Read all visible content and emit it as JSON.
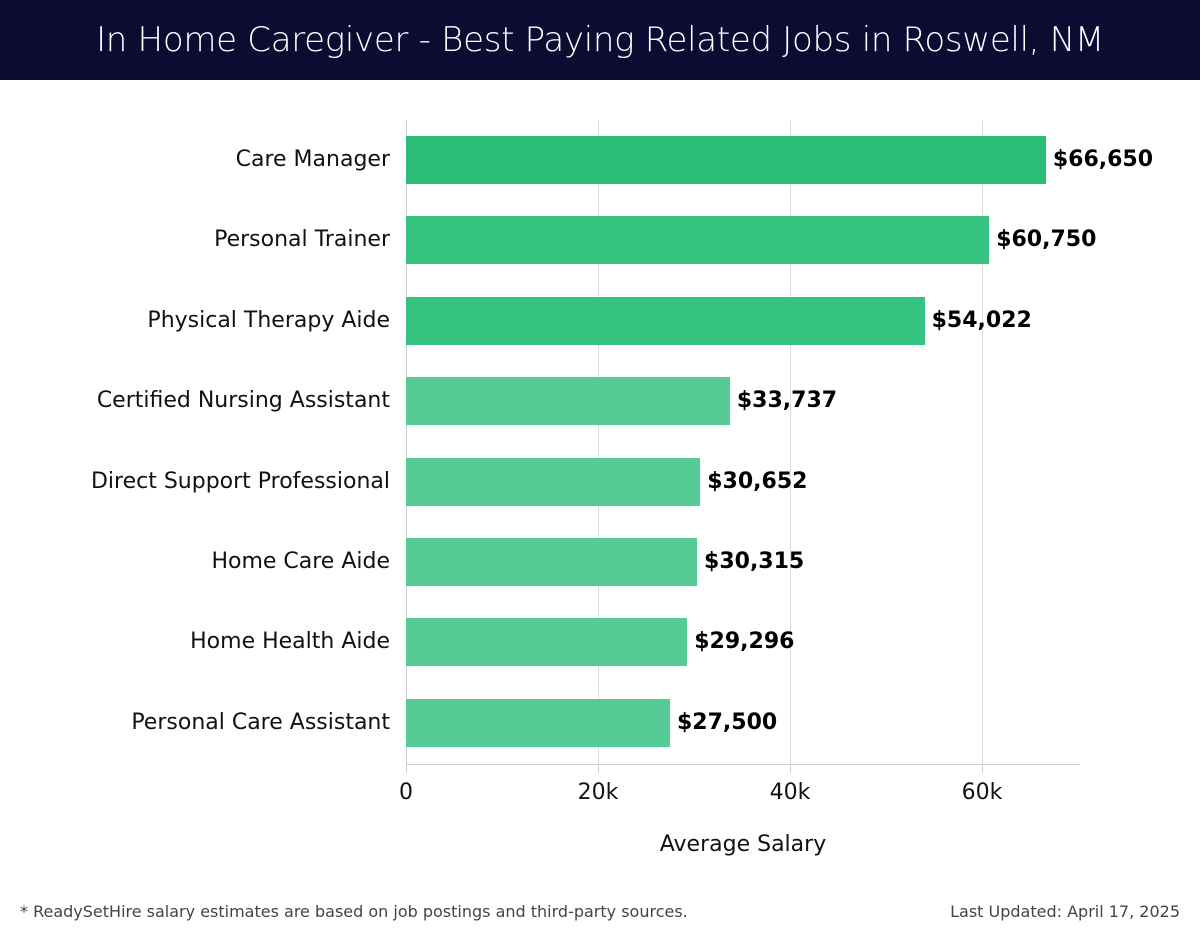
{
  "header": {
    "title": "In Home Caregiver - Best Paying Related Jobs in Roswell, NM"
  },
  "colors": {
    "header_bg": "#0c0c33",
    "bar_top": "#2bbd77",
    "bar_mid": "#36c27f",
    "bar_low": "#55cc95"
  },
  "chart_data": {
    "type": "bar",
    "orientation": "horizontal",
    "title": "In Home Caregiver - Best Paying Related Jobs in Roswell, NM",
    "xlabel": "Average Salary",
    "ylabel": "",
    "xlim": [
      0,
      70200
    ],
    "grid": true,
    "categories": [
      "Care Manager",
      "Personal Trainer",
      "Physical Therapy Aide",
      "Certified Nursing Assistant",
      "Direct Support Professional",
      "Home Care Aide",
      "Home Health Aide",
      "Personal Care Assistant"
    ],
    "values": [
      66650,
      60750,
      54022,
      33737,
      30652,
      30315,
      29296,
      27500
    ],
    "value_labels": [
      "$66,650",
      "$60,750",
      "$54,022",
      "$33,737",
      "$30,652",
      "$30,315",
      "$29,296",
      "$27,500"
    ],
    "x_ticks": [
      0,
      20000,
      40000,
      60000
    ],
    "x_tick_labels": [
      "0",
      "20k",
      "40k",
      "60k"
    ]
  },
  "footer": {
    "note": "* ReadySetHire salary estimates are based on job postings and third-party sources.",
    "updated": "Last Updated: April 17, 2025"
  }
}
